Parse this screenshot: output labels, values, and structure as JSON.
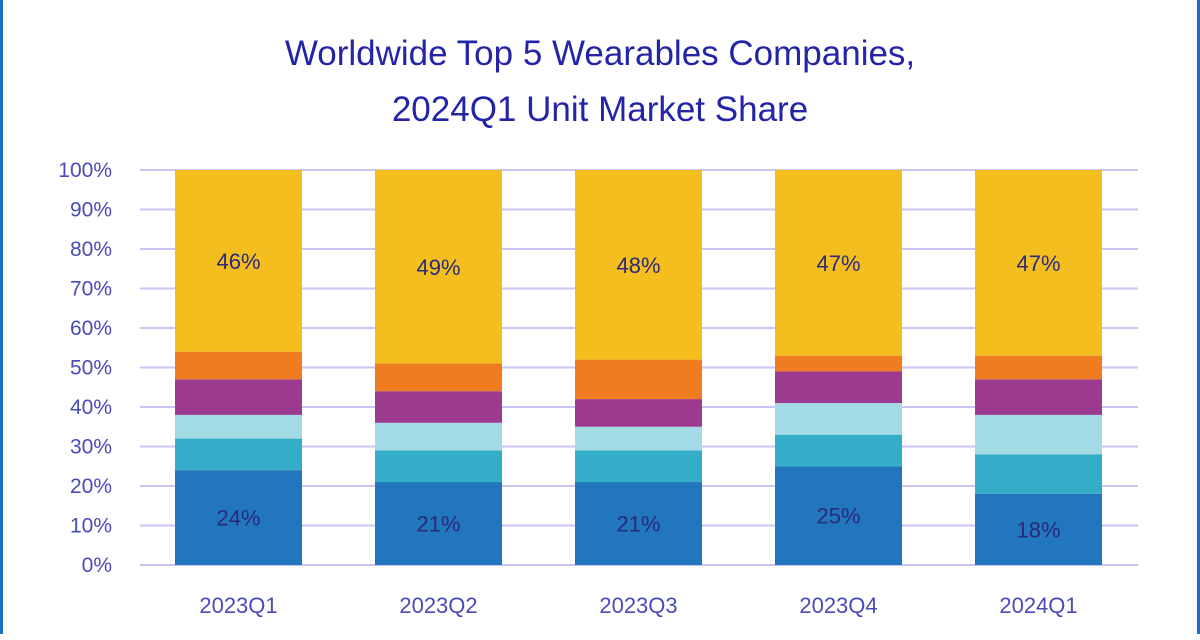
{
  "chart_data": {
    "type": "bar",
    "stacked": true,
    "title": "Worldwide Top 5 Wearables Companies,",
    "subtitle": "2024Q1 Unit Market Share",
    "categories": [
      "2023Q1",
      "2023Q2",
      "2023Q3",
      "2023Q4",
      "2024Q1"
    ],
    "series": [
      {
        "color": "#2176bd",
        "values": [
          24,
          21,
          21,
          25,
          18
        ],
        "labels": [
          "24%",
          "21%",
          "21%",
          "25%",
          "18%"
        ]
      },
      {
        "color": "#35adc8",
        "values": [
          8,
          8,
          8,
          8,
          10
        ]
      },
      {
        "color": "#a2dbe6",
        "values": [
          6,
          7,
          6,
          8,
          10
        ]
      },
      {
        "color": "#9c3a8f",
        "values": [
          9,
          8,
          7,
          8,
          9
        ]
      },
      {
        "color": "#f07c22",
        "values": [
          7,
          7,
          10,
          4,
          6
        ]
      },
      {
        "color": "#f4bf1e",
        "values": [
          46,
          49,
          48,
          47,
          47
        ],
        "labels": [
          "46%",
          "49%",
          "48%",
          "47%",
          "47%"
        ]
      }
    ],
    "ylim": [
      0,
      100
    ],
    "yticks": [
      "0%",
      "10%",
      "20%",
      "30%",
      "40%",
      "50%",
      "60%",
      "70%",
      "80%",
      "90%",
      "100%"
    ],
    "grid": true,
    "legend": "none",
    "colors": {
      "title": "#2424a8",
      "axis_text": "#4a4ab8",
      "grid": "#c8c4f4",
      "label_text": "#2a2a7a"
    }
  }
}
